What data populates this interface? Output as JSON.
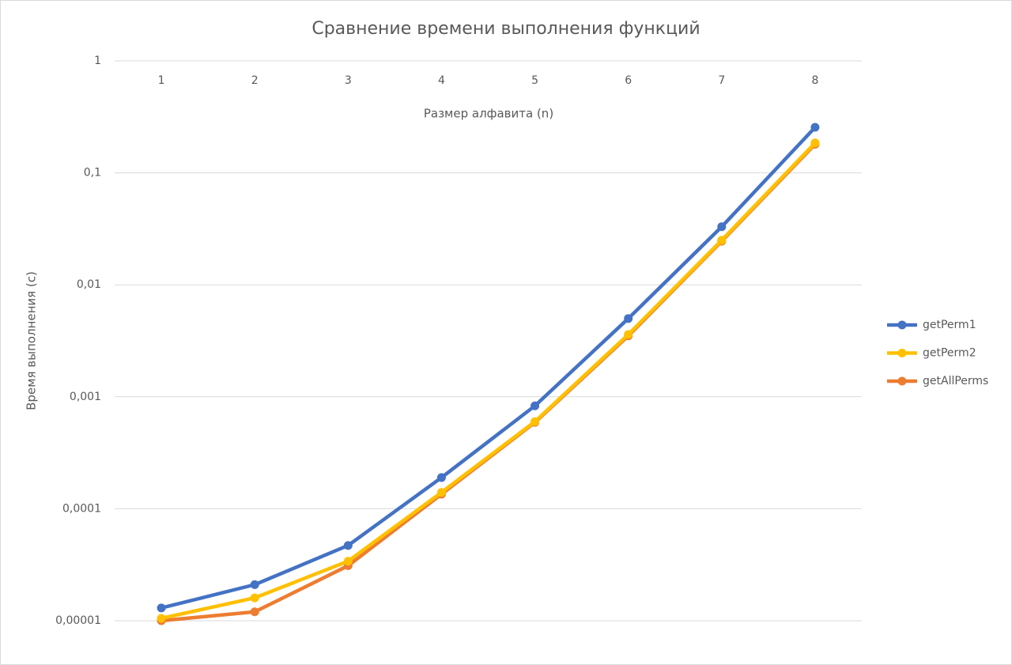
{
  "chart_data": {
    "type": "line",
    "title": "Сравнение времени выполнения функций",
    "x_label": "Размер алфавита (n)",
    "y_label": "Время выполнения (с)",
    "categories": [
      "1",
      "2",
      "3",
      "4",
      "5",
      "6",
      "7",
      "8"
    ],
    "series": [
      {
        "name": "getPerm1",
        "color": "#4472c4",
        "values": [
          1.3e-05,
          2.1e-05,
          4.7e-05,
          0.00019,
          0.00083,
          0.005,
          0.033,
          0.255
        ]
      },
      {
        "name": "getPerm2",
        "color": "#ffc000",
        "values": [
          1.05e-05,
          1.6e-05,
          3.4e-05,
          0.00014,
          0.0006,
          0.0036,
          0.025,
          0.185
        ]
      },
      {
        "name": "getAllPerms",
        "color": "#ed7d31",
        "values": [
          1e-05,
          1.2e-05,
          3.1e-05,
          0.000135,
          0.00059,
          0.0035,
          0.0245,
          0.18
        ]
      }
    ],
    "log_y": true,
    "ylim": [
      1e-05,
      1
    ],
    "yticks": [
      {
        "value": 1e-05,
        "label": "0,00001"
      },
      {
        "value": 0.0001,
        "label": "0,0001"
      },
      {
        "value": 0.001,
        "label": "0,001"
      },
      {
        "value": 0.01,
        "label": "0,01"
      },
      {
        "value": 0.1,
        "label": "0,1"
      },
      1
    ],
    "grid": true,
    "legend": "right"
  }
}
